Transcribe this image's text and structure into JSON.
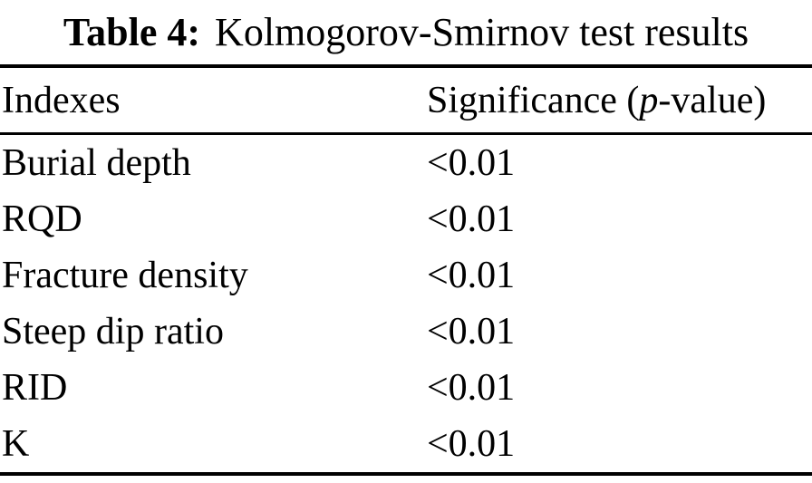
{
  "page": {
    "background_color": "#ffffff",
    "text_color": "#000000"
  },
  "table": {
    "caption": {
      "label": "Table 4:",
      "title": "Kolmogorov-Smirnov test results"
    },
    "header": {
      "col1": "Indexes",
      "col2_prefix": "Significance (",
      "col2_italic": "p",
      "col2_suffix": "-value)"
    },
    "rows": [
      {
        "index": "Burial depth",
        "value": "<0.01"
      },
      {
        "index": "RQD",
        "value": "<0.01"
      },
      {
        "index": "Fracture density",
        "value": "<0.01"
      },
      {
        "index": "Steep dip ratio",
        "value": "<0.01"
      },
      {
        "index": "RID",
        "value": "<0.01"
      },
      {
        "index": "K",
        "value": "<0.01"
      }
    ]
  }
}
